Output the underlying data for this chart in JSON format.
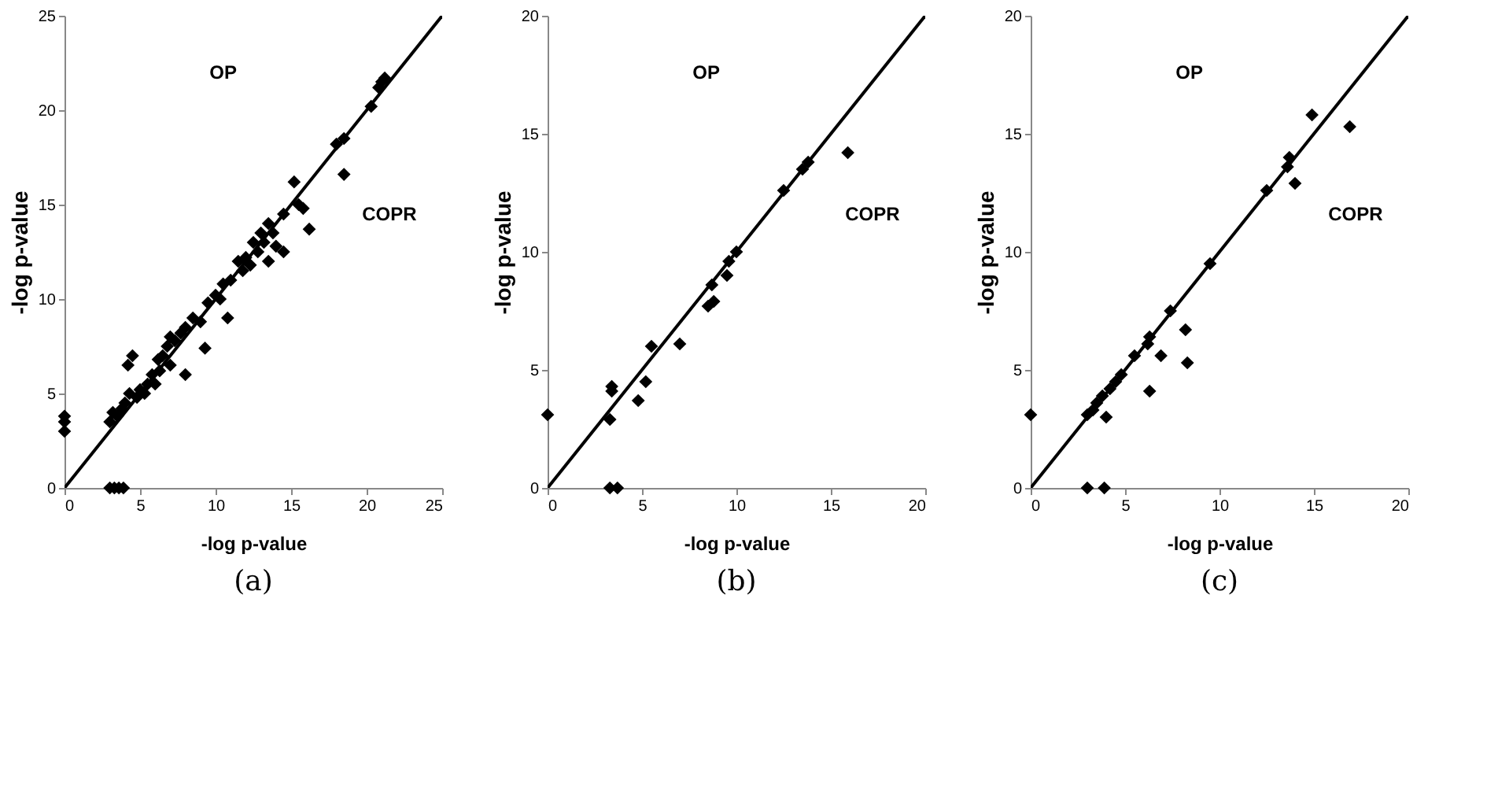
{
  "chart_data": [
    {
      "type": "scatter",
      "title": "(a)",
      "xlabel": "-log p-value",
      "ylabel": "-log p-value",
      "xlim": [
        0,
        25
      ],
      "ylim": [
        0,
        25
      ],
      "xticks": [
        0,
        5,
        10,
        15,
        20,
        25
      ],
      "yticks": [
        0,
        5,
        10,
        15,
        20,
        25
      ],
      "grid": false,
      "annotations": [
        "OP",
        "COPR"
      ],
      "series": [
        {
          "type": "scatter",
          "marker": "diamond",
          "color": "#000000",
          "x": [
            0,
            0,
            0,
            3,
            3.3,
            3.6,
            3.9,
            3,
            3.2,
            3.5,
            3.8,
            4,
            4.2,
            4.5,
            4.3,
            4.8,
            5,
            5.3,
            5.5,
            5.8,
            6,
            6.2,
            6.5,
            6.3,
            6.8,
            7,
            7,
            7.3,
            7.7,
            8,
            8,
            8.5,
            9,
            9.3,
            9.5,
            10,
            10.3,
            10.8,
            10.5,
            11,
            11.5,
            11.8,
            12,
            12.3,
            12.5,
            12.8,
            13,
            13.2,
            13.5,
            13.5,
            13.8,
            14,
            14.5,
            14.5,
            15.2,
            15.5,
            15.8,
            16.2,
            18,
            18.5,
            18.5,
            20.3,
            20.8,
            21,
            21.2
          ],
          "values": [
            3,
            3.5,
            3.8,
            0,
            0,
            0,
            0,
            3.5,
            4,
            3.8,
            4.2,
            4.5,
            6.5,
            7,
            5,
            4.8,
            5.2,
            5,
            5.5,
            6,
            5.5,
            6.8,
            7,
            6.2,
            7.5,
            6.5,
            8,
            7.8,
            8.2,
            6,
            8.5,
            9,
            8.8,
            7.4,
            9.8,
            10.2,
            10,
            9,
            10.8,
            11,
            12,
            11.5,
            12.2,
            11.8,
            13,
            12.5,
            13.5,
            13,
            14,
            12,
            13.5,
            12.8,
            12.5,
            14.5,
            16.2,
            15,
            14.8,
            13.7,
            18.2,
            18.5,
            16.6,
            20.2,
            21.2,
            21.5,
            21.7
          ]
        },
        {
          "type": "line",
          "marker": "none",
          "color": "#000000",
          "x": [
            0,
            25
          ],
          "values": [
            0,
            25
          ]
        }
      ]
    },
    {
      "type": "scatter",
      "title": "(b)",
      "xlabel": "-log p-value",
      "ylabel": "-log p-value",
      "xlim": [
        0,
        20
      ],
      "ylim": [
        0,
        20
      ],
      "xticks": [
        0,
        5,
        10,
        15,
        20
      ],
      "yticks": [
        0,
        5,
        10,
        15,
        20
      ],
      "grid": false,
      "annotations": [
        "OP",
        "COPR"
      ],
      "series": [
        {
          "type": "scatter",
          "marker": "diamond",
          "color": "#000000",
          "x": [
            0,
            3.3,
            3.7,
            3.3,
            3.4,
            3.4,
            4.8,
            5.2,
            5.5,
            7,
            8.5,
            8.7,
            8.8,
            9.5,
            9.6,
            10,
            12.5,
            13.5,
            13.8,
            15.9
          ],
          "values": [
            3.1,
            0,
            0,
            2.9,
            4.1,
            4.3,
            3.7,
            4.5,
            6,
            6.1,
            7.7,
            8.6,
            7.9,
            9,
            9.6,
            10,
            12.6,
            13.5,
            13.8,
            14.2
          ]
        },
        {
          "type": "line",
          "marker": "none",
          "color": "#000000",
          "x": [
            0,
            20
          ],
          "values": [
            0,
            20
          ]
        }
      ]
    },
    {
      "type": "scatter",
      "title": "(c)",
      "xlabel": "-log p-value",
      "ylabel": "-log p-value",
      "xlim": [
        0,
        20
      ],
      "ylim": [
        0,
        20
      ],
      "xticks": [
        0,
        5,
        10,
        15,
        20
      ],
      "yticks": [
        0,
        5,
        10,
        15,
        20
      ],
      "grid": false,
      "annotations": [
        "OP",
        "COPR"
      ],
      "series": [
        {
          "type": "scatter",
          "marker": "diamond",
          "color": "#000000",
          "x": [
            0,
            3,
            3.9,
            3,
            3.3,
            3.5,
            3.8,
            4,
            4.2,
            4.5,
            4.8,
            5.5,
            6.2,
            6.3,
            6.3,
            6.9,
            7.4,
            8.2,
            8.3,
            9.5,
            12.5,
            13.6,
            13.7,
            14,
            14.9,
            16.9
          ],
          "values": [
            3.1,
            0,
            0,
            3.1,
            3.3,
            3.6,
            3.9,
            3,
            4.2,
            4.5,
            4.8,
            5.6,
            6.1,
            6.4,
            4.1,
            5.6,
            7.5,
            6.7,
            5.3,
            9.5,
            12.6,
            13.6,
            14,
            12.9,
            15.8,
            15.3
          ]
        },
        {
          "type": "line",
          "marker": "none",
          "color": "#000000",
          "x": [
            0,
            20
          ],
          "values": [
            0,
            20
          ]
        }
      ]
    }
  ]
}
